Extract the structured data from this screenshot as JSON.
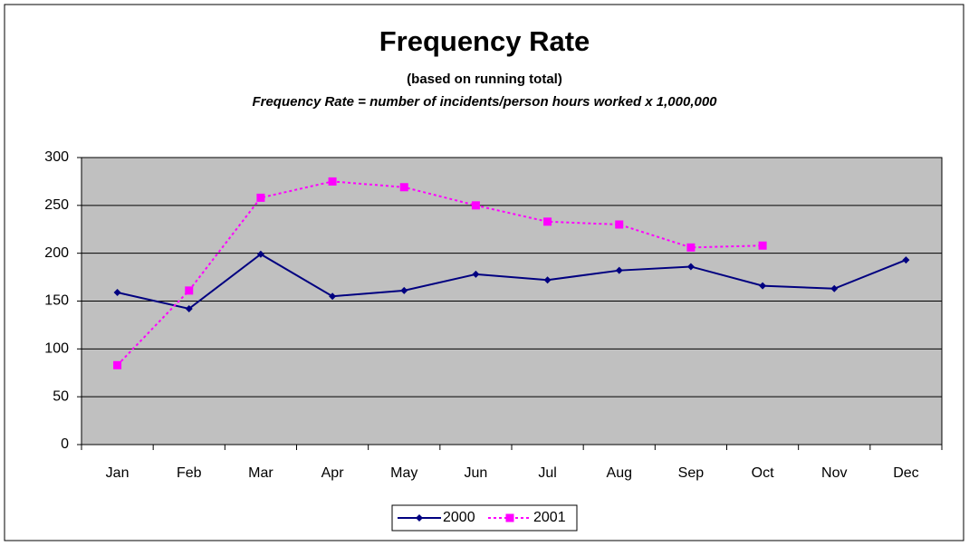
{
  "chart_data": {
    "type": "line",
    "title": "Frequency Rate",
    "subtitle": "(based on running total)",
    "annotation": "Frequency Rate = number of incidents/person hours worked x 1,000,000",
    "categories": [
      "Jan",
      "Feb",
      "Mar",
      "Apr",
      "May",
      "Jun",
      "Jul",
      "Aug",
      "Sep",
      "Oct",
      "Nov",
      "Dec"
    ],
    "series": [
      {
        "name": "2000",
        "color": "#000080",
        "line_style": "solid",
        "marker": "diamond",
        "values": [
          159,
          142,
          199,
          155,
          161,
          178,
          172,
          182,
          186,
          166,
          163,
          193
        ]
      },
      {
        "name": "2001",
        "color": "#ff00ff",
        "line_style": "dotted",
        "marker": "square",
        "values": [
          83,
          161,
          258,
          275,
          269,
          250,
          233,
          230,
          206,
          208,
          null,
          null
        ]
      }
    ],
    "ylim": [
      0,
      300
    ],
    "yticks": [
      0,
      50,
      100,
      150,
      200,
      250,
      300
    ],
    "grid": true,
    "plot_background": "#c0c0c0",
    "legend": "bottom"
  }
}
